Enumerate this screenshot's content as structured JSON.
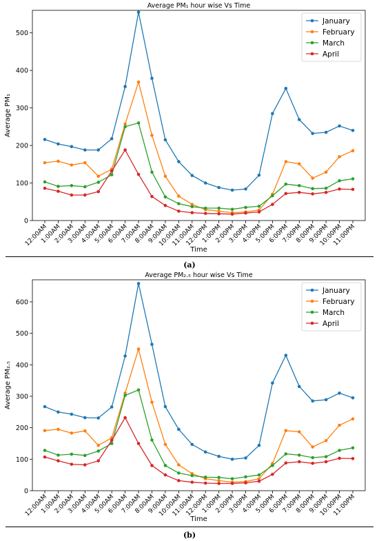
{
  "chart_data": [
    {
      "type": "line",
      "title": "Average PM₁ hour wise Vs Time",
      "xlabel": "Time",
      "ylabel": "Average PM₁",
      "ylim": [
        0,
        560
      ],
      "yticks": [
        0,
        100,
        200,
        300,
        400,
        500
      ],
      "grid": false,
      "legend": "top-right",
      "categories": [
        "12:00AM",
        "1:00AM",
        "2:00AM",
        "3:00AM",
        "4:00AM",
        "5:00AM",
        "6:00AM",
        "7:00AM",
        "8:00AM",
        "9:00AM",
        "10:00AM",
        "11:00AM",
        "12:00PM",
        "1:00PM",
        "2:00PM",
        "3:00PM",
        "4:00PM",
        "5:00PM",
        "6:00PM",
        "7:00PM",
        "8:00PM",
        "9:00PM",
        "10:00PM",
        "11:00PM"
      ],
      "series": [
        {
          "name": "January",
          "color": "#1f77b4",
          "values": [
            216,
            204,
            197,
            188,
            188,
            218,
            357,
            555,
            379,
            215,
            157,
            120,
            100,
            88,
            81,
            84,
            121,
            285,
            352,
            269,
            232,
            235,
            252,
            240
          ]
        },
        {
          "name": "February",
          "color": "#ff7f0e",
          "values": [
            154,
            158,
            148,
            154,
            118,
            137,
            257,
            369,
            227,
            118,
            65,
            43,
            29,
            25,
            21,
            23,
            28,
            70,
            157,
            151,
            113,
            129,
            170,
            186
          ]
        },
        {
          "name": "March",
          "color": "#2ca02c",
          "values": [
            103,
            91,
            93,
            90,
            102,
            122,
            250,
            260,
            129,
            63,
            45,
            37,
            33,
            33,
            30,
            35,
            38,
            66,
            97,
            93,
            85,
            86,
            106,
            111
          ]
        },
        {
          "name": "April",
          "color": "#d62728",
          "values": [
            86,
            78,
            68,
            68,
            77,
            132,
            188,
            123,
            64,
            40,
            25,
            21,
            19,
            18,
            17,
            20,
            23,
            43,
            72,
            75,
            71,
            75,
            84,
            83
          ]
        }
      ]
    },
    {
      "type": "line",
      "title": "Average PM₂.₅ hour wise Vs Time",
      "xlabel": "Time",
      "ylabel": "Average PM₂.₅",
      "ylim": [
        0,
        670
      ],
      "yticks": [
        0,
        100,
        200,
        300,
        400,
        500,
        600
      ],
      "grid": false,
      "legend": "top-right",
      "categories": [
        "12:00AM",
        "1:00AM",
        "2:00AM",
        "3:00AM",
        "4:00AM",
        "5:00AM",
        "6:00AM",
        "7:00AM",
        "8:00AM",
        "9:00AM",
        "10:00AM",
        "11:00AM",
        "12:00PM",
        "1:00PM",
        "2:00PM",
        "3:00PM",
        "4:00PM",
        "5:00PM",
        "6:00PM",
        "7:00PM",
        "8:00PM",
        "9:00PM",
        "10:00PM",
        "11:00PM"
      ],
      "series": [
        {
          "name": "January",
          "color": "#1f77b4",
          "values": [
            267,
            250,
            243,
            232,
            231,
            266,
            428,
            658,
            465,
            267,
            195,
            147,
            123,
            109,
            100,
            104,
            144,
            342,
            430,
            331,
            285,
            289,
            310,
            295
          ]
        },
        {
          "name": "February",
          "color": "#ff7f0e",
          "values": [
            191,
            195,
            183,
            190,
            144,
            168,
            310,
            450,
            281,
            147,
            82,
            54,
            38,
            32,
            27,
            29,
            38,
            86,
            191,
            187,
            139,
            159,
            208,
            228
          ]
        },
        {
          "name": "March",
          "color": "#2ca02c",
          "values": [
            128,
            113,
            116,
            112,
            126,
            150,
            303,
            320,
            161,
            80,
            56,
            48,
            43,
            42,
            38,
            44,
            50,
            80,
            117,
            113,
            105,
            108,
            128,
            136
          ]
        },
        {
          "name": "April",
          "color": "#d62728",
          "values": [
            107,
            95,
            84,
            82,
            95,
            160,
            232,
            150,
            80,
            50,
            32,
            27,
            24,
            23,
            23,
            25,
            30,
            52,
            88,
            92,
            87,
            92,
            103,
            102
          ]
        }
      ]
    }
  ],
  "panel_labels": [
    "(a)",
    "(b)"
  ]
}
